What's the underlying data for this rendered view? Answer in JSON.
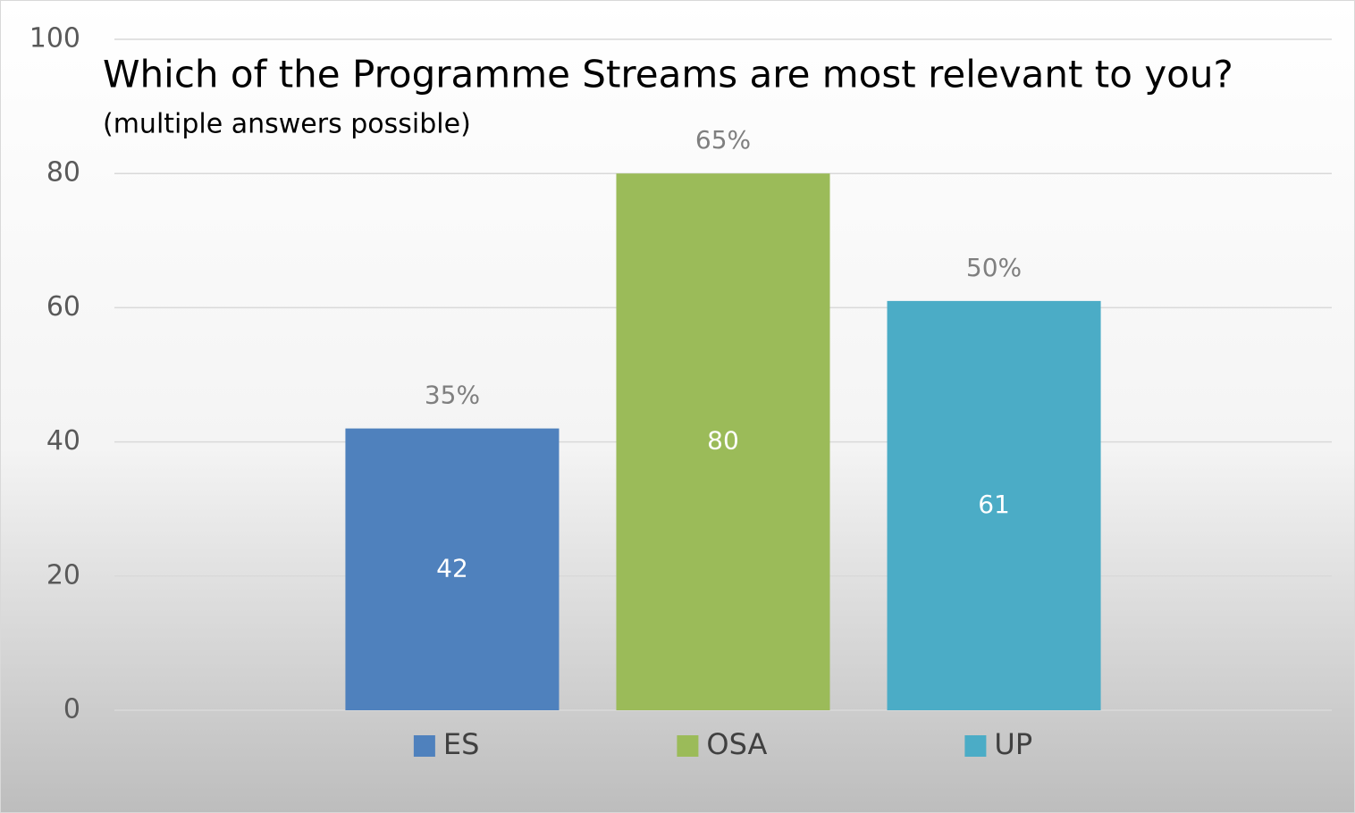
{
  "chart_data": {
    "type": "bar",
    "title": "Which of the Programme Streams are most relevant to you?",
    "subtitle": "(multiple answers possible)",
    "categories": [
      null
    ],
    "series": [
      {
        "name": "ES",
        "color": "#4f81bd",
        "values": [
          42
        ],
        "annotation": "35%"
      },
      {
        "name": "OSA",
        "color": "#9bbb59",
        "values": [
          80
        ],
        "annotation": "65%"
      },
      {
        "name": "UP",
        "color": "#4bacc6",
        "values": [
          61
        ],
        "annotation": "50%"
      }
    ],
    "ylim": [
      0,
      100
    ],
    "yticks": [
      0,
      20,
      40,
      60,
      80,
      100
    ],
    "grid": true,
    "legend": "bottom"
  }
}
